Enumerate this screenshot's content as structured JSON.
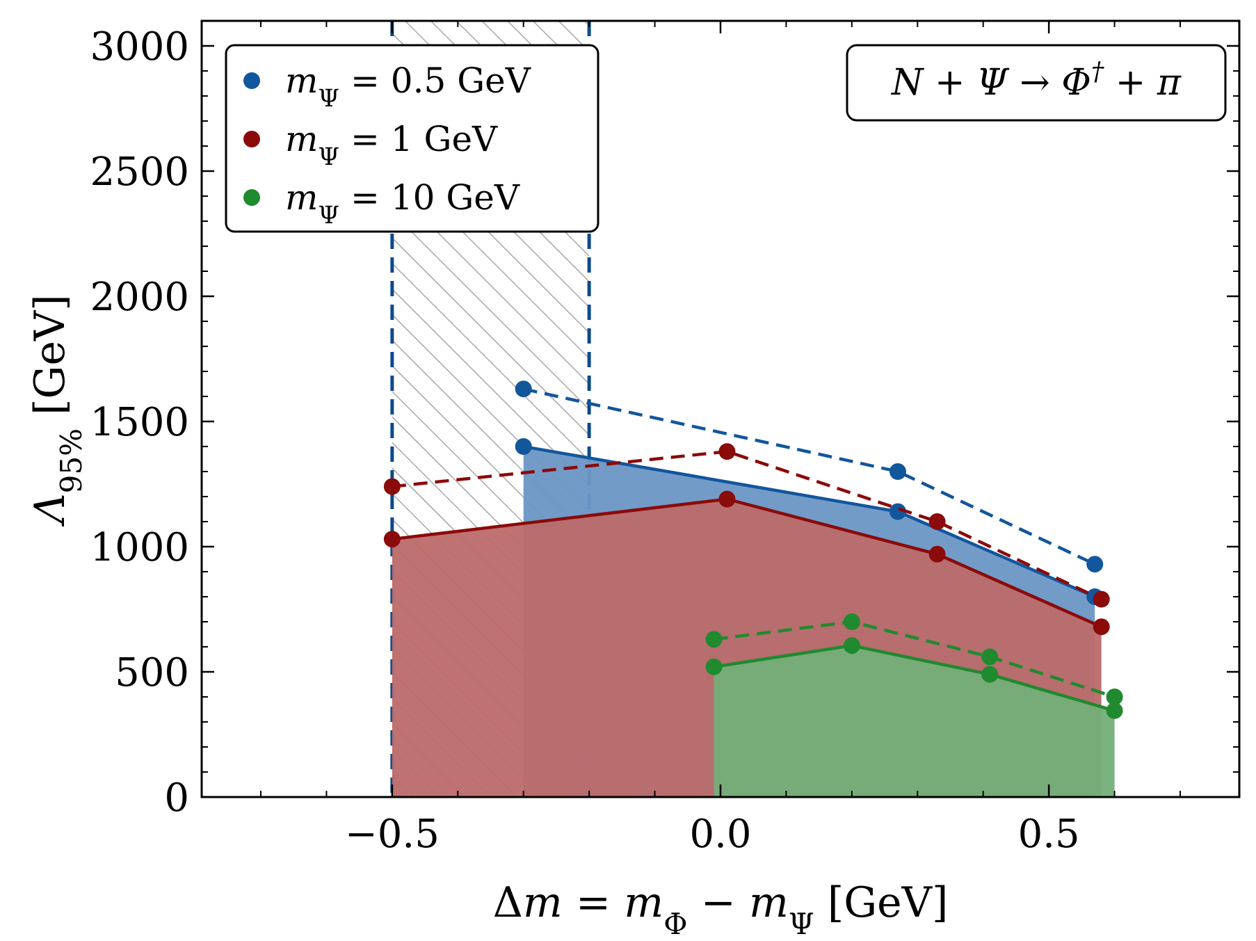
{
  "chart_data": {
    "type": "line",
    "xlabel": "Δm = m_Φ − m_Ψ [GeV]",
    "ylabel": "Λ_95% [GeV]",
    "xlim": [
      -0.79,
      0.79
    ],
    "ylim": [
      0,
      3100
    ],
    "xticks": [
      -0.5,
      0.0,
      0.5
    ],
    "xtick_labels": [
      "−0.5",
      "0.0",
      "0.5"
    ],
    "yticks": [
      0,
      500,
      1000,
      1500,
      2000,
      2500,
      3000
    ],
    "ytick_labels": [
      "0",
      "500",
      "1000",
      "1500",
      "2000",
      "2500",
      "3000"
    ],
    "annotation": "N + Ψ → Φ† + π",
    "legend_position": "top-left",
    "hatched_region": {
      "x": [
        -0.5,
        -0.2
      ],
      "boundary_color": "#0d4a8c"
    },
    "series": [
      {
        "name": "m_Ψ = 0.5 GeV",
        "color": "#12569c",
        "fill": "#6a96c5",
        "solid": {
          "x": [
            -0.3,
            0.27,
            0.57
          ],
          "y": [
            1400,
            1140,
            800
          ]
        },
        "dashed": {
          "x": [
            -0.3,
            0.27,
            0.57
          ],
          "y": [
            1630,
            1300,
            930
          ]
        }
      },
      {
        "name": "m_Ψ = 1 GeV",
        "color": "#8b0a0a",
        "fill": "#bc6a6a",
        "solid": {
          "x": [
            -0.5,
            0.01,
            0.33,
            0.58
          ],
          "y": [
            1030,
            1190,
            970,
            680
          ]
        },
        "dashed": {
          "x": [
            -0.5,
            0.01,
            0.33,
            0.58
          ],
          "y": [
            1240,
            1380,
            1100,
            790
          ]
        }
      },
      {
        "name": "m_Ψ = 10 GeV",
        "color": "#1f8a2e",
        "fill": "#73af78",
        "solid": {
          "x": [
            -0.01,
            0.2,
            0.41,
            0.6
          ],
          "y": [
            520,
            605,
            490,
            345
          ]
        },
        "dashed": {
          "x": [
            -0.01,
            0.2,
            0.41,
            0.6
          ],
          "y": [
            630,
            700,
            560,
            400
          ]
        }
      }
    ]
  }
}
